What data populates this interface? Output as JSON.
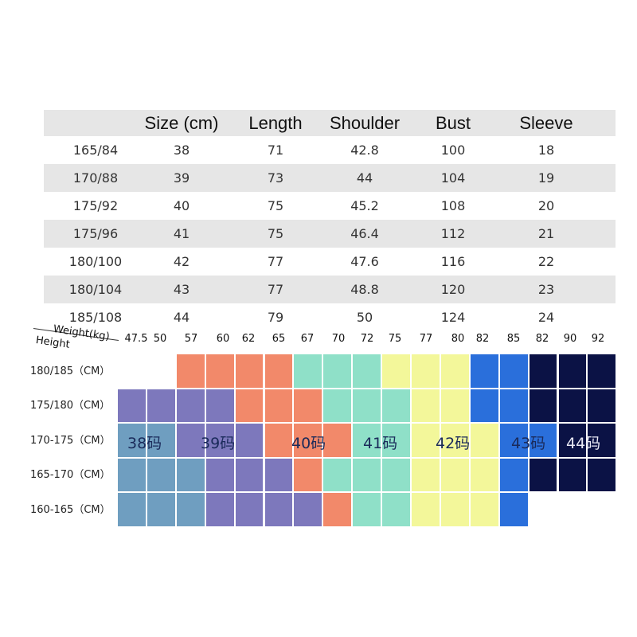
{
  "size_table": {
    "headers": [
      "",
      "Size (cm)",
      "Length",
      "Shoulder",
      "Bust",
      "Sleeve"
    ],
    "rows": [
      [
        "165/84",
        "38",
        "71",
        "42.8",
        "100",
        "18"
      ],
      [
        "170/88",
        "39",
        "73",
        "44",
        "104",
        "19"
      ],
      [
        "175/92",
        "40",
        "75",
        "45.2",
        "108",
        "20"
      ],
      [
        "175/96",
        "41",
        "75",
        "46.4",
        "112",
        "21"
      ],
      [
        "180/100",
        "42",
        "77",
        "47.6",
        "116",
        "22"
      ],
      [
        "180/104",
        "43",
        "77",
        "48.8",
        "120",
        "23"
      ],
      [
        "185/108",
        "44",
        "79",
        "50",
        "124",
        "24"
      ]
    ]
  },
  "grid_chart": {
    "weight_label": "Weight(kg)",
    "height_label": "Height",
    "weights": [
      "47.5",
      "50",
      "57",
      "60",
      "62",
      "65",
      "67",
      "70",
      "72",
      "75",
      "77",
      "80",
      "82",
      "85",
      "82",
      "90",
      "92"
    ],
    "heights": [
      "180/185（CM）",
      "175/180（CM）",
      "170-175（CM）",
      "165-170（CM）",
      "160-165（CM）"
    ],
    "colors": {
      "38": "#6f9ec0",
      "39": "#7d78bc",
      "40": "#f2896a",
      "41": "#8fe0c8",
      "42": "#f3f79a",
      "43": "#2a6fdb",
      "44": "#0b1245"
    },
    "cells": [
      [
        null,
        null,
        "40",
        "40",
        "40",
        "40",
        "41",
        "41",
        "41",
        "42",
        "42",
        "42",
        "43",
        "43",
        "44",
        "44",
        "44"
      ],
      [
        "39",
        "39",
        "39",
        "39",
        "40",
        "40",
        "40",
        "41",
        "41",
        "41",
        "42",
        "42",
        "43",
        "43",
        "44",
        "44",
        "44"
      ],
      [
        "38",
        "38",
        "39",
        "39",
        "39",
        "40",
        "40",
        "40",
        "41",
        "41",
        "42",
        "42",
        "42",
        "43",
        "43",
        "44",
        "44"
      ],
      [
        "38",
        "38",
        "38",
        "39",
        "39",
        "39",
        "40",
        "41",
        "41",
        "41",
        "42",
        "42",
        "42",
        "43",
        "44",
        "44",
        "44"
      ],
      [
        "38",
        "38",
        "38",
        "39",
        "39",
        "39",
        "39",
        "40",
        "41",
        "41",
        "42",
        "42",
        "42",
        "43",
        null,
        null,
        null
      ]
    ],
    "size_labels": [
      {
        "size": "38",
        "text": "38码"
      },
      {
        "size": "39",
        "text": "39码"
      },
      {
        "size": "40",
        "text": "40码"
      },
      {
        "size": "41",
        "text": "41码"
      },
      {
        "size": "42",
        "text": "42码"
      },
      {
        "size": "43",
        "text": "43码"
      },
      {
        "size": "44",
        "text": "44码"
      }
    ]
  }
}
